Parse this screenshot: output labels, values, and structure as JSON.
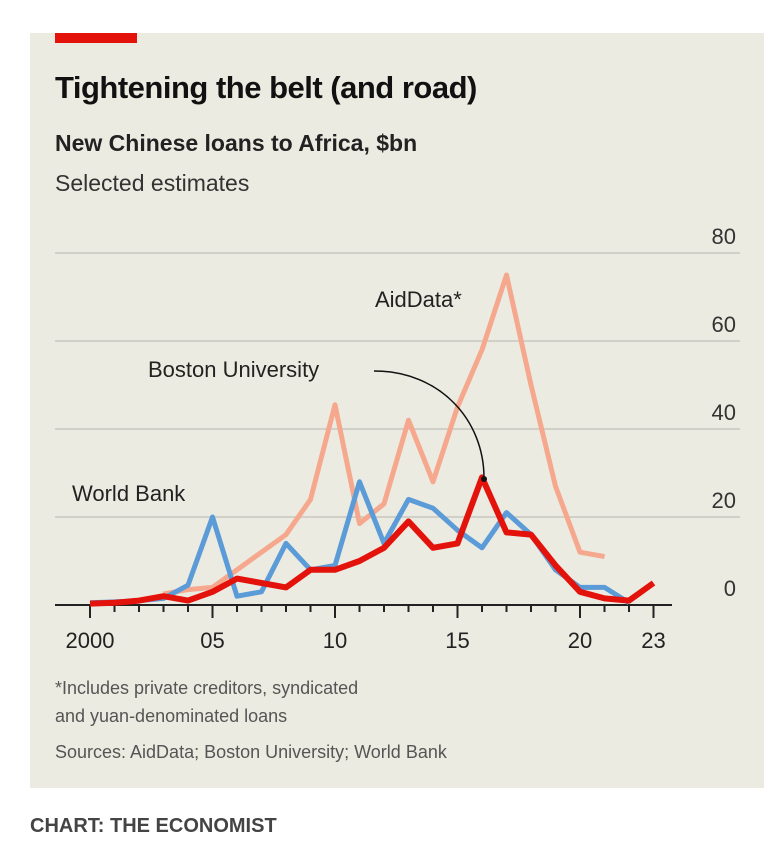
{
  "header": {
    "title": "Tightening the belt (and road)",
    "subtitle": "New Chinese loans to Africa, $bn",
    "subtitle2": "Selected estimates"
  },
  "chart_data": {
    "type": "line",
    "title": "New Chinese loans to Africa, $bn",
    "ylim": [
      0,
      80
    ],
    "yticks": [
      0,
      20,
      40,
      60,
      80
    ],
    "xlim": [
      2000,
      2023
    ],
    "xtick_labels": [
      {
        "year": 2000,
        "label": "2000"
      },
      {
        "year": 2005,
        "label": "05"
      },
      {
        "year": 2010,
        "label": "10"
      },
      {
        "year": 2015,
        "label": "15"
      },
      {
        "year": 2020,
        "label": "20"
      },
      {
        "year": 2023,
        "label": "23"
      }
    ],
    "grid": true,
    "series": [
      {
        "name": "AidData*",
        "color": "#f5a88e",
        "x": [
          2003,
          2004,
          2005,
          2006,
          2007,
          2008,
          2009,
          2010,
          2011,
          2012,
          2013,
          2014,
          2015,
          2016,
          2017,
          2018,
          2019,
          2020,
          2021
        ],
        "values": [
          2.5,
          3.5,
          4,
          8,
          12,
          16,
          24,
          45.5,
          18.5,
          23,
          42,
          28,
          45,
          58,
          75,
          50,
          27,
          12,
          11
        ]
      },
      {
        "name": "World Bank",
        "color": "#5b9bd8",
        "x": [
          2000,
          2001,
          2002,
          2003,
          2004,
          2005,
          2006,
          2007,
          2008,
          2009,
          2010,
          2011,
          2012,
          2013,
          2014,
          2015,
          2016,
          2017,
          2018,
          2019,
          2020,
          2021,
          2022
        ],
        "values": [
          0.5,
          0.7,
          1,
          1.5,
          4.5,
          20,
          2,
          3,
          14,
          8,
          9,
          28,
          14,
          24,
          22,
          17,
          13,
          21,
          16,
          8,
          4,
          4,
          0.5
        ]
      },
      {
        "name": "Boston University",
        "color": "#e3120b",
        "x": [
          2000,
          2001,
          2002,
          2003,
          2004,
          2005,
          2006,
          2007,
          2008,
          2009,
          2010,
          2011,
          2012,
          2013,
          2014,
          2015,
          2016,
          2017,
          2018,
          2019,
          2020,
          2021,
          2022,
          2023
        ],
        "values": [
          0.3,
          0.5,
          1,
          2,
          1,
          3,
          6,
          5,
          4,
          8,
          8,
          10,
          13,
          19,
          13,
          14,
          29,
          16.5,
          16,
          9,
          3,
          1.5,
          1,
          5
        ]
      }
    ],
    "labels": {
      "aiddata": "AidData*",
      "bu": "Boston University",
      "wb": "World Bank"
    }
  },
  "footnote": {
    "note1": "*Includes private creditors, syndicated",
    "note2": "and yuan-denominated loans",
    "sources": "Sources: AidData; Boston University; World Bank"
  },
  "credit": "CHART: THE ECONOMIST"
}
